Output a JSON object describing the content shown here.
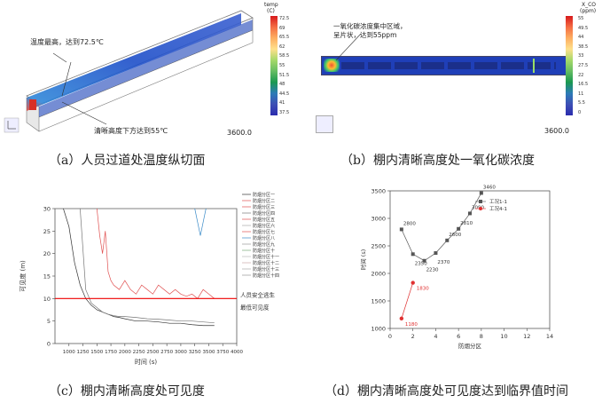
{
  "panel_a": {
    "caption": "（a）人员过道处温度纵切面",
    "annotation_top": "温度最高，达到72.5℃",
    "annotation_bottom": "清晰高度下方达到55℃",
    "time_label": "3600.0",
    "scale_title": "temp",
    "scale_unit": "(C)",
    "scale_ticks": [
      "72.5",
      "69",
      "65.5",
      "62",
      "58.5",
      "55",
      "51.5",
      "48",
      "44.5",
      "41",
      "37.5"
    ]
  },
  "panel_b": {
    "caption": "（b）棚内清晰高度处一氧化碳浓度",
    "annotation_line1": "一氧化碳浓度集中区域，",
    "annotation_line2": "呈片状，达到55ppm",
    "time_label": "3600.0",
    "scale_title": "X_CO",
    "scale_unit": "(ppm)",
    "scale_ticks": [
      "55",
      "49.5",
      "44",
      "38.5",
      "33",
      "27.5",
      "22",
      "16.5",
      "11",
      "5.5",
      "0"
    ]
  },
  "panel_c": {
    "caption": "（c）棚内清晰高度处可见度",
    "threshold_label_1": "人员安全逃生",
    "threshold_label_2": "最低可见度",
    "legend": [
      "防烟分区一",
      "防烟分区二",
      "防烟分区三",
      "防烟分区四",
      "防烟分区五",
      "防烟分区六",
      "防烟分区七",
      "防烟分区八",
      "防烟分区九",
      "防烟分区十",
      "防烟分区十一",
      "防烟分区十二",
      "防烟分区十三",
      "防烟分区十四"
    ]
  },
  "panel_d": {
    "caption": "（d）棚内清晰高度处可见度达到临界值时间",
    "legend": [
      "工况1-1",
      "工况4-1"
    ]
  },
  "chart_data": [
    {
      "type": "line",
      "xlabel": "时间 (s)",
      "ylabel": "可见度 (m)",
      "xlim": [
        750,
        4000
      ],
      "ylim": [
        0,
        30
      ],
      "xticks": [
        "1000",
        "1250",
        "1500",
        "1750",
        "2000",
        "2250",
        "2500",
        "2750",
        "3000",
        "3250",
        "3500",
        "3750",
        "4000"
      ],
      "yticks": [
        "0",
        "5",
        "10",
        "15",
        "20",
        "25",
        "30"
      ],
      "threshold": 10,
      "series": [
        {
          "name": "防烟分区一",
          "x": [
            900,
            1000,
            1100,
            1200,
            1300,
            1400,
            1500,
            1600,
            1700,
            1800,
            1900,
            2000,
            2200,
            2400,
            2600,
            2800,
            3000,
            3200,
            3400,
            3600
          ],
          "y": [
            30,
            26,
            18,
            13,
            10,
            8.5,
            7.5,
            7,
            6.5,
            6,
            5.8,
            5.5,
            5,
            5,
            4.8,
            4.5,
            4.5,
            4.2,
            4,
            4
          ]
        },
        {
          "name": "防烟分区二",
          "x": [
            1500,
            1550,
            1600,
            1650,
            1700,
            1750,
            1800,
            1900,
            2000,
            2100,
            2200,
            2300,
            2400,
            2500,
            2600,
            2700,
            2800,
            2900,
            3000,
            3100,
            3200,
            3300,
            3400,
            3500,
            3600
          ],
          "y": [
            30,
            24,
            20,
            25,
            16,
            14,
            13,
            12,
            14,
            12,
            11,
            13,
            12,
            11,
            13,
            12,
            11,
            12,
            11,
            10.5,
            11,
            10,
            12,
            11,
            10
          ]
        },
        {
          "name": "防烟分区三",
          "x": [
            1200,
            1300,
            1400,
            1500,
            1600,
            1700,
            1800,
            1900,
            2000,
            2200,
            2400,
            2600,
            2800,
            3000,
            3200,
            3400,
            3600
          ],
          "y": [
            30,
            12,
            9,
            8,
            7,
            6.5,
            6.2,
            6,
            6,
            5.8,
            5.5,
            5.4,
            5.2,
            5,
            5,
            4.8,
            4.6
          ]
        },
        {
          "name": "防烟分区四",
          "x": [
            3250,
            3300,
            3350,
            3400,
            3450
          ],
          "y": [
            30,
            27,
            24,
            27,
            30
          ]
        }
      ]
    },
    {
      "type": "scatter",
      "xlabel": "防烟分区",
      "ylabel": "时间 (s)",
      "xlim": [
        0,
        14
      ],
      "ylim": [
        1000,
        3500
      ],
      "xticks": [
        "0",
        "2",
        "4",
        "6",
        "8",
        "10",
        "12",
        "14"
      ],
      "yticks": [
        "1000",
        "1500",
        "2000",
        "2500",
        "3000",
        "3500"
      ],
      "series": [
        {
          "name": "工况1-1",
          "x": [
            1,
            2,
            3,
            4,
            5,
            6,
            7,
            8
          ],
          "y": [
            2800,
            2350,
            2230,
            2370,
            2600,
            2810,
            3090,
            3460
          ],
          "labels": [
            "2800",
            "2350",
            "2230",
            "2370",
            "2600",
            "2810",
            "3090",
            "3460"
          ]
        },
        {
          "name": "工况4-1",
          "x": [
            1,
            2
          ],
          "y": [
            1180,
            1830
          ],
          "labels": [
            "1180",
            "1830"
          ]
        }
      ]
    }
  ]
}
